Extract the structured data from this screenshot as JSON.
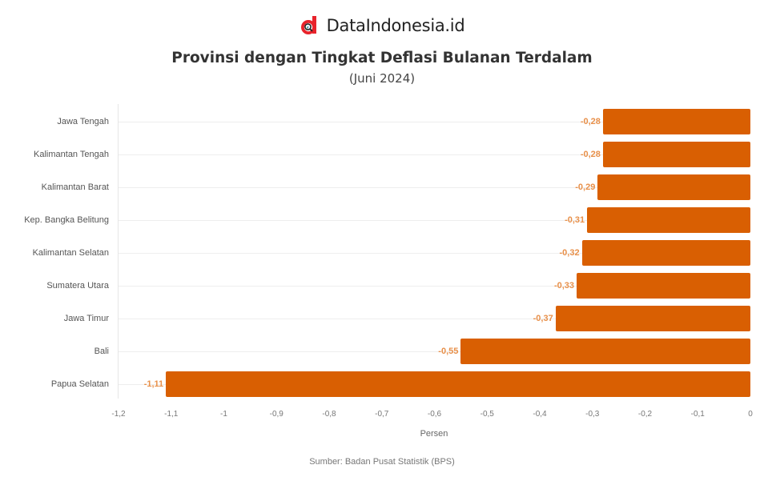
{
  "brand": {
    "name": "DataIndonesia.id",
    "logo_color": "#e8232b"
  },
  "header": {
    "title": "Provinsi dengan Tingkat Deflasi Bulanan Terdalam",
    "subtitle": "(Juni 2024)"
  },
  "footer": {
    "source": "Sumber: Badan Pusat Statistik (BPS)"
  },
  "chart_data": {
    "type": "bar",
    "orientation": "horizontal",
    "title": "Provinsi dengan Tingkat Deflasi Bulanan Terdalam",
    "subtitle": "(Juni 2024)",
    "xlabel": "Persen",
    "ylabel": "",
    "xlim": [
      -1.2,
      0
    ],
    "x_ticks": [
      "-1,2",
      "-1,1",
      "-1",
      "-0,9",
      "-0,8",
      "-0,7",
      "-0,6",
      "-0,5",
      "-0,4",
      "-0,3",
      "-0,2",
      "-0,1",
      "0"
    ],
    "grid": true,
    "bar_color": "#d95f02",
    "label_color": "#e8904a",
    "categories": [
      "Jawa Tengah",
      "Kalimantan Tengah",
      "Kalimantan Barat",
      "Kep. Bangka Belitung",
      "Kalimantan Selatan",
      "Sumatera Utara",
      "Jawa Timur",
      "Bali",
      "Papua Selatan"
    ],
    "values": [
      -0.28,
      -0.28,
      -0.29,
      -0.31,
      -0.32,
      -0.33,
      -0.37,
      -0.55,
      -1.11
    ],
    "value_labels": [
      "-0,28",
      "-0,28",
      "-0,29",
      "-0,31",
      "-0,32",
      "-0,33",
      "-0,37",
      "-0,55",
      "-1,11"
    ],
    "source": "Sumber: Badan Pusat Statistik (BPS)"
  }
}
